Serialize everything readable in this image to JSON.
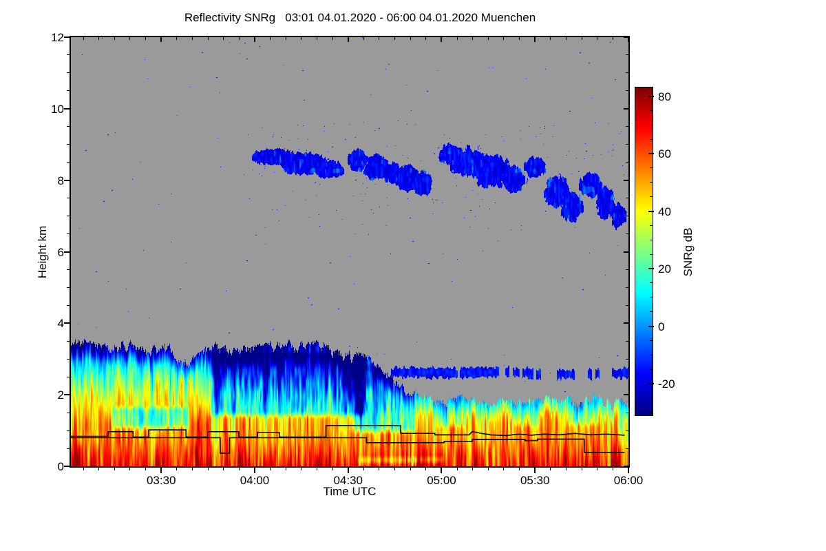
{
  "title": "Reflectivity SNRg   03:01 04.01.2020 - 06:00 04.01.2020 Muenchen",
  "station": "Muenchen",
  "x_axis": {
    "label": "Time UTC",
    "start_utc": "03:01",
    "end_utc": "06:00",
    "minutes_total": 179,
    "major_ticks": [
      {
        "label": "03:30",
        "minute": 30
      },
      {
        "label": "04:00",
        "minute": 60
      },
      {
        "label": "04:30",
        "minute": 90
      },
      {
        "label": "05:00",
        "minute": 120
      },
      {
        "label": "05:30",
        "minute": 150
      },
      {
        "label": "06:00",
        "minute": 180
      }
    ],
    "minor_step_minutes": 5
  },
  "y_axis": {
    "label": "Height km",
    "min": 0,
    "max": 12,
    "major_ticks": [
      0,
      2,
      4,
      6,
      8,
      10,
      12
    ],
    "minor_step": 0.5
  },
  "colorbar": {
    "label": "SNRg dB",
    "ticks": [
      80,
      60,
      40,
      20,
      0,
      -20
    ],
    "minor_step": 5,
    "scale_min": -31,
    "scale_max": 83,
    "colormap": "jet"
  },
  "chart_data": {
    "type": "heatmap",
    "x": {
      "start_utc": "03:01",
      "end_utc": "06:00",
      "date": "04.01.2020",
      "minutes_total": 179
    },
    "y": {
      "min_km": 0,
      "max_km": 12
    },
    "z": {
      "label": "SNRg dB",
      "scale_min": -31,
      "scale_max": 83,
      "colormap": "jet",
      "nodata_color": "#9a9a9a"
    },
    "low_layer": {
      "top_km_points": [
        [
          1,
          3.3
        ],
        [
          6,
          3.45
        ],
        [
          12,
          3.25
        ],
        [
          18,
          3.35
        ],
        [
          25,
          3.2
        ],
        [
          31,
          3.35
        ],
        [
          37,
          2.85
        ],
        [
          41,
          3.0
        ],
        [
          47,
          3.3
        ],
        [
          53,
          3.25
        ],
        [
          60,
          3.35
        ],
        [
          68,
          3.3
        ],
        [
          76,
          3.35
        ],
        [
          84,
          3.25
        ],
        [
          90,
          3.1
        ],
        [
          96,
          2.95
        ],
        [
          101,
          2.7
        ],
        [
          105,
          2.3
        ],
        [
          110,
          2.0
        ],
        [
          116,
          1.9
        ],
        [
          122,
          1.8
        ],
        [
          128,
          1.9
        ],
        [
          134,
          1.75
        ],
        [
          140,
          1.85
        ],
        [
          146,
          1.7
        ],
        [
          152,
          1.8
        ],
        [
          158,
          1.9
        ],
        [
          164,
          1.75
        ],
        [
          170,
          1.85
        ],
        [
          175,
          1.7
        ],
        [
          179,
          1.8
        ]
      ],
      "profile_db_by_km": [
        [
          0,
          64
        ],
        [
          0.2,
          60
        ],
        [
          0.5,
          54
        ],
        [
          0.8,
          49
        ],
        [
          1.1,
          46
        ],
        [
          1.5,
          42
        ],
        [
          1.9,
          34
        ],
        [
          2.3,
          24
        ],
        [
          2.7,
          12
        ],
        [
          3.1,
          -2
        ],
        [
          3.5,
          -14
        ],
        [
          4,
          -22
        ]
      ],
      "top_taper_km": 0.5,
      "top_taper_db": 26,
      "column_streak_db": 8,
      "texture_db": 14,
      "detail_db": 8,
      "cool_pockets": [
        [
          13,
          40,
          0.95,
          1.75,
          -24
        ],
        [
          44,
          97,
          1.3,
          3.3,
          -30
        ],
        [
          90,
          113,
          0.85,
          2.95,
          -28
        ],
        [
          117,
          129,
          1.0,
          2.1,
          -16
        ],
        [
          142,
          153,
          1.0,
          1.9,
          -14
        ],
        [
          159,
          172,
          1.05,
          2.0,
          -16
        ],
        [
          92,
          122,
          0.0,
          0.33,
          -26
        ]
      ],
      "warm_streaks": [
        [
          3,
          1.5,
          14,
          3.0
        ],
        [
          8,
          1.2,
          12,
          2.8
        ],
        [
          24,
          1.5,
          14,
          1.8
        ],
        [
          42,
          1.8,
          16,
          2.2
        ],
        [
          56,
          1.2,
          10,
          1.6
        ],
        [
          63,
          1.0,
          8,
          1.5
        ],
        [
          86,
          1.2,
          9,
          1.6
        ],
        [
          113,
          1.5,
          13,
          1.6
        ],
        [
          120,
          1.2,
          10,
          1.5
        ],
        [
          131,
          1.6,
          15,
          1.7
        ],
        [
          140,
          1.0,
          8,
          1.4
        ],
        [
          149,
          1.2,
          9,
          1.5
        ],
        [
          160,
          1.5,
          12,
          1.6
        ],
        [
          170,
          1.3,
          11,
          1.5
        ],
        [
          176,
          1.0,
          9,
          1.4
        ]
      ]
    },
    "residual_layer": {
      "t_start": 103,
      "height_km_points": [
        [
          103,
          2.62
        ],
        [
          120,
          2.6
        ],
        [
          140,
          2.62
        ],
        [
          160,
          2.55
        ],
        [
          179,
          2.6
        ]
      ],
      "half_thickness_km": 0.09,
      "db": -15,
      "gap_threshold_early": 0.18,
      "gap_threshold_late": 0.42,
      "late_after_min": 132
    },
    "cirrus_clusters": [
      [
        66,
        8.65,
        7,
        0.22
      ],
      [
        76,
        8.45,
        8,
        0.3
      ],
      [
        84,
        8.3,
        5,
        0.25
      ],
      [
        93,
        8.55,
        3,
        0.3
      ],
      [
        99,
        8.35,
        4,
        0.35
      ],
      [
        104,
        8.2,
        3,
        0.3
      ],
      [
        109,
        8.05,
        4,
        0.35
      ],
      [
        114,
        7.9,
        3,
        0.35
      ],
      [
        123,
        8.7,
        4,
        0.3
      ],
      [
        129,
        8.5,
        6,
        0.4
      ],
      [
        136,
        8.25,
        6,
        0.45
      ],
      [
        143,
        8.0,
        4,
        0.35
      ],
      [
        150,
        8.35,
        3.5,
        0.3
      ],
      [
        157,
        7.65,
        4,
        0.45
      ],
      [
        162,
        7.25,
        3.5,
        0.4
      ],
      [
        168,
        7.85,
        3.5,
        0.35
      ],
      [
        173,
        7.35,
        3,
        0.45
      ],
      [
        177,
        7.0,
        2.5,
        0.35
      ]
    ],
    "cirrus_db": {
      "base": -24,
      "range": 13,
      "bright_boost": 10
    },
    "speckles": {
      "count": 180,
      "band_count": 170,
      "band_t_min": 58,
      "band_h_min": 6.6,
      "band_h_max": 9.6,
      "db": -24
    },
    "boundary_lines": [
      {
        "name": "upper-step-line",
        "color": "#000000",
        "points_min_km": [
          [
            1,
            0.82
          ],
          [
            13,
            0.82
          ],
          [
            13,
            0.95
          ],
          [
            21,
            0.95
          ],
          [
            21,
            0.8
          ],
          [
            26,
            0.8
          ],
          [
            26,
            1.0
          ],
          [
            38,
            1.0
          ],
          [
            38,
            0.8
          ],
          [
            45,
            0.8
          ],
          [
            45,
            0.95
          ],
          [
            55,
            0.95
          ],
          [
            55,
            0.8
          ],
          [
            61,
            0.8
          ],
          [
            61,
            0.93
          ],
          [
            68,
            0.93
          ],
          [
            68,
            0.8
          ],
          [
            83,
            0.8
          ],
          [
            83,
            1.12
          ],
          [
            107,
            1.12
          ],
          [
            107,
            0.9
          ],
          [
            118,
            0.9
          ],
          [
            118,
            0.86
          ],
          [
            129,
            0.86
          ],
          [
            130,
            0.95
          ],
          [
            133,
            0.9
          ],
          [
            136,
            0.86
          ],
          [
            141,
            0.84
          ],
          [
            145,
            0.88
          ],
          [
            149,
            0.85
          ],
          [
            153,
            0.88
          ],
          [
            158,
            0.86
          ],
          [
            163,
            0.9
          ],
          [
            168,
            0.86
          ],
          [
            173,
            0.88
          ],
          [
            179,
            0.85
          ]
        ]
      },
      {
        "name": "lower-step-line",
        "color": "#000000",
        "points_min_km": [
          [
            1,
            0.78
          ],
          [
            49,
            0.78
          ],
          [
            49,
            0.35
          ],
          [
            52,
            0.35
          ],
          [
            52,
            0.78
          ],
          [
            96,
            0.78
          ],
          [
            96,
            0.64
          ],
          [
            121,
            0.64
          ],
          [
            121,
            0.68
          ],
          [
            130,
            0.68
          ],
          [
            130,
            0.73
          ],
          [
            147,
            0.73
          ],
          [
            147,
            0.7
          ],
          [
            151,
            0.7
          ],
          [
            151,
            0.74
          ],
          [
            166,
            0.74
          ],
          [
            166,
            0.37
          ],
          [
            179,
            0.37
          ]
        ]
      }
    ]
  }
}
